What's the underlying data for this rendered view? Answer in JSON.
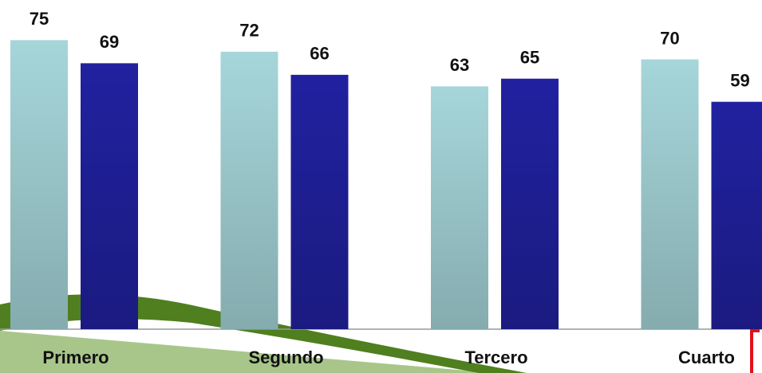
{
  "chart_data": {
    "type": "bar",
    "categories": [
      "Primero",
      "Segundo",
      "Tercero",
      "Cuarto"
    ],
    "series": [
      {
        "color": "#a6d6da",
        "values": [
          75,
          72,
          63,
          70
        ]
      },
      {
        "color": "#2121a0",
        "values": [
          69,
          66,
          65,
          59
        ]
      }
    ],
    "ylim": [
      0,
      85
    ]
  }
}
